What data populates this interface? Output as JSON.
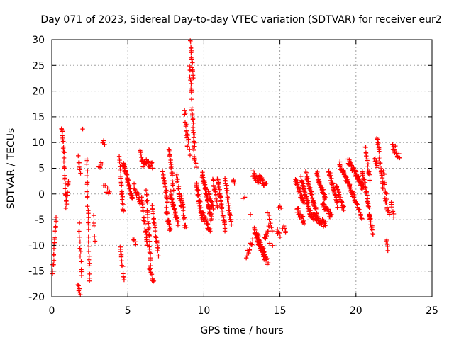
{
  "chart_data": {
    "type": "scatter",
    "title": "Day 071 of 2023, Sidereal Day-to-day VTEC variation (SDTVAR) for receiver eur2",
    "xlabel": "GPS time / hours",
    "ylabel": "SDTVAR / TECUs",
    "xlim": [
      0,
      25
    ],
    "ylim": [
      -20,
      30
    ],
    "xticks": [
      0,
      5,
      10,
      15,
      20,
      25
    ],
    "yticks": [
      -20,
      -15,
      -10,
      -5,
      0,
      5,
      10,
      15,
      20,
      25,
      30
    ],
    "grid": true,
    "marker": "+",
    "color": "#ff0000",
    "series": [
      {
        "name": "SDTVAR",
        "segments": [
          {
            "x0": 0.05,
            "x1": 0.3,
            "y0": -15,
            "y1": -5,
            "n": 18
          },
          {
            "x0": 0.65,
            "x1": 0.8,
            "y0": 13,
            "y1": 8,
            "n": 16
          },
          {
            "x0": 0.8,
            "x1": 0.95,
            "y0": 7,
            "y1": -2.5,
            "n": 16
          },
          {
            "x0": 0.95,
            "x1": 1.1,
            "y0": -2,
            "y1": 3,
            "n": 10
          },
          {
            "x0": 1.7,
            "x1": 1.85,
            "y0": -17.5,
            "y1": -19.5,
            "n": 6
          },
          {
            "x0": 1.75,
            "x1": 1.9,
            "y0": 7,
            "y1": 4,
            "n": 8
          },
          {
            "x0": 1.8,
            "x1": 1.95,
            "y0": -6,
            "y1": -16,
            "n": 12
          },
          {
            "x0": 2.0,
            "x1": 2.1,
            "y0": 13.2,
            "y1": 13.2,
            "n": 1
          },
          {
            "x0": 2.3,
            "x1": 2.5,
            "y0": 7,
            "y1": -17,
            "n": 28
          },
          {
            "x0": 2.75,
            "x1": 2.85,
            "y0": -4,
            "y1": -9,
            "n": 5
          },
          {
            "x0": 3.1,
            "x1": 3.3,
            "y0": 5,
            "y1": 6,
            "n": 5
          },
          {
            "x0": 3.35,
            "x1": 3.45,
            "y0": 10.5,
            "y1": 10,
            "n": 4
          },
          {
            "x0": 3.4,
            "x1": 3.8,
            "y0": 1.5,
            "y1": 0,
            "n": 6
          },
          {
            "x0": 4.45,
            "x1": 4.7,
            "y0": 7,
            "y1": -3.5,
            "n": 22
          },
          {
            "x0": 4.5,
            "x1": 4.75,
            "y0": -10,
            "y1": -17,
            "n": 12
          },
          {
            "x0": 4.7,
            "x1": 5.3,
            "y0": 6,
            "y1": -1,
            "n": 40
          },
          {
            "x0": 5.35,
            "x1": 5.5,
            "y0": -8.5,
            "y1": -10,
            "n": 5
          },
          {
            "x0": 5.4,
            "x1": 5.8,
            "y0": 1.5,
            "y1": -1.5,
            "n": 14
          },
          {
            "x0": 5.8,
            "x1": 6.0,
            "y0": 8.5,
            "y1": 5.5,
            "n": 10
          },
          {
            "x0": 5.9,
            "x1": 6.3,
            "y0": -1,
            "y1": -10,
            "n": 24
          },
          {
            "x0": 6.0,
            "x1": 6.6,
            "y0": 6.5,
            "y1": 5.5,
            "n": 20
          },
          {
            "x0": 6.2,
            "x1": 6.5,
            "y0": 1,
            "y1": -13.5,
            "n": 28
          },
          {
            "x0": 6.4,
            "x1": 6.7,
            "y0": -14,
            "y1": -17,
            "n": 10
          },
          {
            "x0": 6.6,
            "x1": 7.0,
            "y0": -2,
            "y1": -11.5,
            "n": 26
          },
          {
            "x0": 7.3,
            "x1": 7.6,
            "y0": 4,
            "y1": -1.5,
            "n": 20
          },
          {
            "x0": 7.5,
            "x1": 7.8,
            "y0": -3,
            "y1": -7,
            "n": 16
          },
          {
            "x0": 7.7,
            "x1": 8.0,
            "y0": 9,
            "y1": 1,
            "n": 20
          },
          {
            "x0": 7.8,
            "x1": 8.3,
            "y0": 0,
            "y1": -6,
            "n": 28
          },
          {
            "x0": 8.2,
            "x1": 8.5,
            "y0": 4,
            "y1": -3,
            "n": 18
          },
          {
            "x0": 8.5,
            "x1": 8.8,
            "y0": 0,
            "y1": -7,
            "n": 16
          },
          {
            "x0": 8.75,
            "x1": 8.9,
            "y0": 16.5,
            "y1": 9,
            "n": 12
          },
          {
            "x0": 8.9,
            "x1": 9.1,
            "y0": 12,
            "y1": 8,
            "n": 8
          },
          {
            "x0": 9.05,
            "x1": 9.2,
            "y0": 25,
            "y1": 19,
            "n": 10
          },
          {
            "x0": 9.1,
            "x1": 9.3,
            "y0": 29.5,
            "y1": 23,
            "n": 14
          },
          {
            "x0": 9.2,
            "x1": 9.4,
            "y0": 16.5,
            "y1": 9,
            "n": 16
          },
          {
            "x0": 9.3,
            "x1": 9.5,
            "y0": 9,
            "y1": 5,
            "n": 8
          },
          {
            "x0": 9.5,
            "x1": 9.9,
            "y0": 2,
            "y1": -5,
            "n": 30
          },
          {
            "x0": 9.9,
            "x1": 10.5,
            "y0": 4,
            "y1": -5,
            "n": 44
          },
          {
            "x0": 9.9,
            "x1": 10.4,
            "y0": -4,
            "y1": -7,
            "n": 22
          },
          {
            "x0": 10.3,
            "x1": 10.6,
            "y0": 0,
            "y1": -3,
            "n": 14
          },
          {
            "x0": 10.6,
            "x1": 10.9,
            "y0": 3,
            "y1": -2,
            "n": 16
          },
          {
            "x0": 10.9,
            "x1": 11.4,
            "y0": 3,
            "y1": -7,
            "n": 36
          },
          {
            "x0": 11.4,
            "x1": 11.8,
            "y0": 3,
            "y1": -6,
            "n": 26
          },
          {
            "x0": 11.9,
            "x1": 12.0,
            "y0": 3,
            "y1": 2,
            "n": 4
          },
          {
            "x0": 12.6,
            "x1": 12.7,
            "y0": -1,
            "y1": -1,
            "n": 2
          },
          {
            "x0": 12.8,
            "x1": 13.2,
            "y0": -12,
            "y1": -9,
            "n": 10
          },
          {
            "x0": 13.0,
            "x1": 13.1,
            "y0": -4,
            "y1": -4,
            "n": 1
          },
          {
            "x0": 13.2,
            "x1": 13.6,
            "y0": 4,
            "y1": 2.5,
            "n": 16
          },
          {
            "x0": 13.3,
            "x1": 13.8,
            "y0": -7,
            "y1": -11,
            "n": 26
          },
          {
            "x0": 13.5,
            "x1": 14.0,
            "y0": -8,
            "y1": -12.5,
            "n": 28
          },
          {
            "x0": 13.6,
            "x1": 14.1,
            "y0": 3.5,
            "y1": 1.5,
            "n": 18
          },
          {
            "x0": 13.9,
            "x1": 14.2,
            "y0": -11,
            "y1": -13.5,
            "n": 14
          },
          {
            "x0": 14.0,
            "x1": 14.3,
            "y0": -9,
            "y1": -6,
            "n": 10
          },
          {
            "x0": 14.2,
            "x1": 14.5,
            "y0": -4,
            "y1": -7,
            "n": 6
          },
          {
            "x0": 14.3,
            "x1": 14.5,
            "y0": -10,
            "y1": -10,
            "n": 2
          },
          {
            "x0": 14.8,
            "x1": 15.0,
            "y0": -7,
            "y1": -8.5,
            "n": 6
          },
          {
            "x0": 14.9,
            "x1": 15.1,
            "y0": -2.5,
            "y1": -2.5,
            "n": 3
          },
          {
            "x0": 15.2,
            "x1": 15.4,
            "y0": -6.5,
            "y1": -7.5,
            "n": 6
          },
          {
            "x0": 16.0,
            "x1": 16.6,
            "y0": 3,
            "y1": -2,
            "n": 30
          },
          {
            "x0": 16.1,
            "x1": 16.6,
            "y0": -3,
            "y1": -5.5,
            "n": 20
          },
          {
            "x0": 16.4,
            "x1": 17.0,
            "y0": 3,
            "y1": -4,
            "n": 36
          },
          {
            "x0": 16.7,
            "x1": 17.5,
            "y0": 4,
            "y1": -4.5,
            "n": 40
          },
          {
            "x0": 17.0,
            "x1": 18.0,
            "y0": -4,
            "y1": -6,
            "n": 40
          },
          {
            "x0": 17.4,
            "x1": 18.0,
            "y0": 4,
            "y1": -1,
            "n": 30
          },
          {
            "x0": 17.8,
            "x1": 18.4,
            "y0": -2,
            "y1": -4.5,
            "n": 24
          },
          {
            "x0": 18.2,
            "x1": 18.8,
            "y0": 4.5,
            "y1": -2,
            "n": 30
          },
          {
            "x0": 18.7,
            "x1": 19.2,
            "y0": 1.5,
            "y1": -3,
            "n": 22
          },
          {
            "x0": 18.9,
            "x1": 19.8,
            "y0": 6,
            "y1": 0,
            "n": 44
          },
          {
            "x0": 19.5,
            "x1": 20.5,
            "y0": 6.5,
            "y1": 1,
            "n": 50
          },
          {
            "x0": 19.8,
            "x1": 20.4,
            "y0": 0,
            "y1": -5,
            "n": 24
          },
          {
            "x0": 20.4,
            "x1": 20.7,
            "y0": 5,
            "y1": 0,
            "n": 14
          },
          {
            "x0": 20.6,
            "x1": 20.9,
            "y0": 9,
            "y1": 3,
            "n": 16
          },
          {
            "x0": 20.7,
            "x1": 21.1,
            "y0": 0,
            "y1": -8,
            "n": 26
          },
          {
            "x0": 21.2,
            "x1": 21.4,
            "y0": 7,
            "y1": 5.5,
            "n": 8
          },
          {
            "x0": 21.4,
            "x1": 21.8,
            "y0": 11,
            "y1": 1,
            "n": 26
          },
          {
            "x0": 21.8,
            "x1": 22.0,
            "y0": 5,
            "y1": -1,
            "n": 10
          },
          {
            "x0": 21.9,
            "x1": 22.2,
            "y0": -1,
            "y1": -4.5,
            "n": 10
          },
          {
            "x0": 22.0,
            "x1": 22.1,
            "y0": -9,
            "y1": -11,
            "n": 6
          },
          {
            "x0": 22.3,
            "x1": 22.5,
            "y0": -1,
            "y1": -4,
            "n": 6
          },
          {
            "x0": 22.4,
            "x1": 22.6,
            "y0": 10,
            "y1": 9.5,
            "n": 3
          },
          {
            "x0": 22.4,
            "x1": 22.9,
            "y0": 9,
            "y1": 7,
            "n": 12
          }
        ]
      }
    ]
  }
}
